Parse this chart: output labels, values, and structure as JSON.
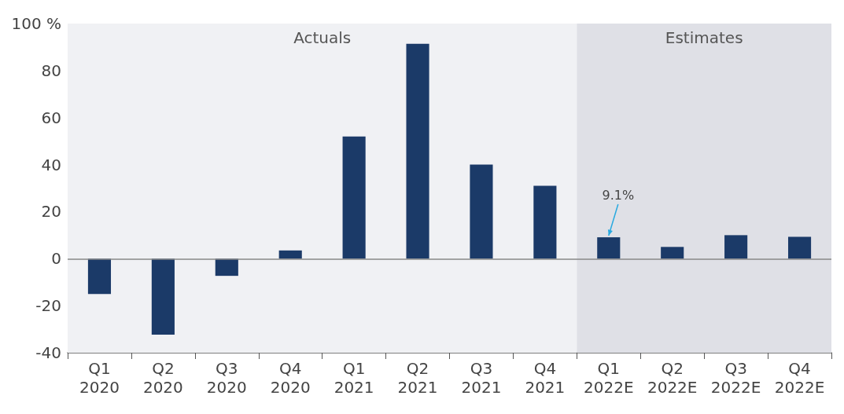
{
  "chart_data": {
    "type": "bar",
    "categories": [
      "Q1\n2020",
      "Q2\n2020",
      "Q3\n2020",
      "Q4\n2020",
      "Q1\n2021",
      "Q2\n2021",
      "Q3\n2021",
      "Q4\n2021",
      "Q1\n2022E",
      "Q2\n2022E",
      "Q3\n2022E",
      "Q4\n2022E"
    ],
    "values": [
      -15,
      -32.3,
      -7.3,
      3.5,
      52,
      91.4,
      40,
      31,
      9.1,
      5,
      10,
      9.3
    ],
    "color": "#1b3a68",
    "ylim": [
      -40,
      100
    ],
    "yticks": [
      -40,
      -20,
      0,
      20,
      40,
      60,
      80,
      {
        "value": 100,
        "label": "100 %"
      }
    ],
    "grid": false,
    "ref_lines": [
      {
        "axis": "y",
        "value": 0,
        "color": "#888888"
      }
    ],
    "bands": [
      {
        "axis": "x",
        "from": "Q1\n2020",
        "to": "Q4\n2021",
        "label": "Actuals",
        "color": "#f0f1f4"
      },
      {
        "axis": "x",
        "from": "Q1\n2022E",
        "to": "Q4\n2022E",
        "label": "Estimates",
        "color": "#dfe0e6"
      }
    ],
    "annotations": [
      {
        "text": "9.1%",
        "x": "Q1\n2022E",
        "y": 9.1
      }
    ]
  }
}
